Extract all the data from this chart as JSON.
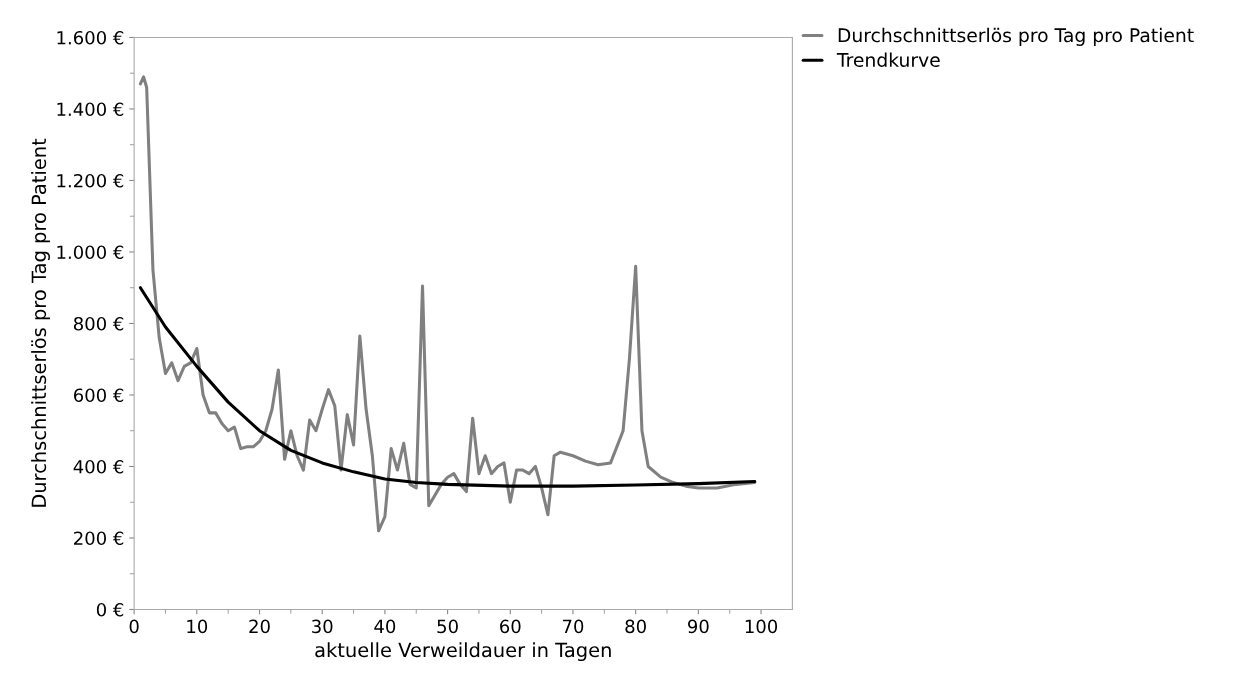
{
  "chart_data": {
    "type": "line",
    "xlabel": "aktuelle Verweildauer in Tagen",
    "ylabel": "Durchschnittserlös pro Tag pro Patient",
    "xlim": [
      0,
      105
    ],
    "xticks": [
      0,
      10,
      20,
      30,
      40,
      50,
      60,
      70,
      80,
      90,
      100
    ],
    "ylim": [
      0,
      1600
    ],
    "yticks": [
      {
        "value": 0,
        "label": "0 €"
      },
      {
        "value": 200,
        "label": "200 €"
      },
      {
        "value": 400,
        "label": "400 €"
      },
      {
        "value": 600,
        "label": "600 €"
      },
      {
        "value": 800,
        "label": "800 €"
      },
      {
        "value": 1000,
        "label": "1.000 €"
      },
      {
        "value": 1200,
        "label": "1.200 €"
      },
      {
        "value": 1400,
        "label": "1.400 €"
      },
      {
        "value": 1600,
        "label": "1.600 €"
      }
    ],
    "legend": "top right",
    "grid": false,
    "series": [
      {
        "name": "Durchschnittserlös pro Tag pro Patient",
        "color": "#808080",
        "x": [
          1,
          1.5,
          2,
          3,
          4,
          5,
          6,
          7,
          8,
          9,
          10,
          11,
          12,
          13,
          14,
          15,
          16,
          17,
          18,
          19,
          20,
          21,
          22,
          23,
          24,
          25,
          26,
          27,
          28,
          29,
          30,
          31,
          32,
          33,
          34,
          35,
          36,
          37,
          38,
          39,
          40,
          41,
          42,
          43,
          44,
          45,
          46,
          47,
          48,
          49,
          50,
          51,
          52,
          53,
          54,
          55,
          56,
          57,
          58,
          59,
          60,
          61,
          62,
          63,
          64,
          65,
          66,
          67,
          68,
          70,
          72,
          74,
          76,
          78,
          79,
          80,
          81,
          82,
          84,
          86,
          88,
          90,
          93,
          96,
          99
        ],
        "values": [
          1470,
          1490,
          1460,
          950,
          760,
          660,
          690,
          640,
          680,
          690,
          730,
          600,
          550,
          550,
          520,
          500,
          510,
          450,
          455,
          455,
          470,
          500,
          560,
          670,
          420,
          500,
          430,
          390,
          530,
          500,
          560,
          615,
          570,
          390,
          545,
          460,
          765,
          560,
          430,
          220,
          260,
          450,
          390,
          465,
          350,
          340,
          905,
          290,
          320,
          350,
          370,
          380,
          350,
          330,
          535,
          380,
          430,
          380,
          400,
          410,
          300,
          390,
          390,
          380,
          400,
          340,
          265,
          430,
          440,
          430,
          415,
          405,
          410,
          500,
          700,
          960,
          500,
          400,
          370,
          355,
          345,
          340,
          340,
          350,
          355
        ]
      },
      {
        "name": "Trendkurve",
        "color": "#000000",
        "x": [
          1,
          5,
          10,
          15,
          20,
          25,
          30,
          35,
          40,
          45,
          50,
          60,
          70,
          80,
          90,
          99
        ],
        "values": [
          900,
          790,
          680,
          580,
          500,
          445,
          410,
          385,
          365,
          355,
          350,
          345,
          345,
          348,
          352,
          358
        ]
      }
    ]
  }
}
